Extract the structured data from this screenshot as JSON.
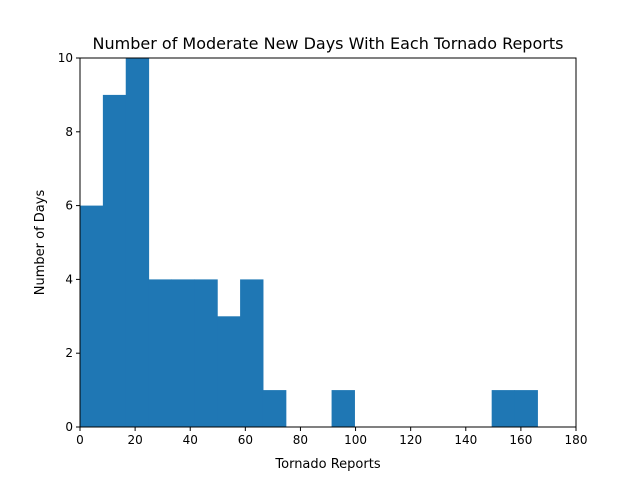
{
  "chart_data": {
    "type": "bar",
    "title": "Number of Moderate New Days With Each Tornado Reports",
    "xlabel": "Tornado Reports",
    "ylabel": "Number of Days",
    "xlim": [
      0,
      180
    ],
    "ylim": [
      0,
      10
    ],
    "xticks": [
      "0",
      "20",
      "40",
      "60",
      "80",
      "100",
      "120",
      "140",
      "160",
      "180"
    ],
    "yticks": [
      "0",
      "2",
      "4",
      "6",
      "8",
      "10"
    ],
    "bin_edges": [
      0,
      8.3,
      16.6,
      24.9,
      33.2,
      41.5,
      49.8,
      58.1,
      66.4,
      74.7,
      83.0,
      91.3,
      99.6,
      107.9,
      116.2,
      124.5,
      132.8,
      141.1,
      149.4,
      157.7,
      166.0
    ],
    "values": [
      6,
      9,
      10,
      4,
      4,
      4,
      3,
      4,
      1,
      0,
      0,
      1,
      0,
      0,
      0,
      0,
      0,
      0,
      1,
      1
    ],
    "bar_color": "#1f77b4",
    "grid": false
  }
}
